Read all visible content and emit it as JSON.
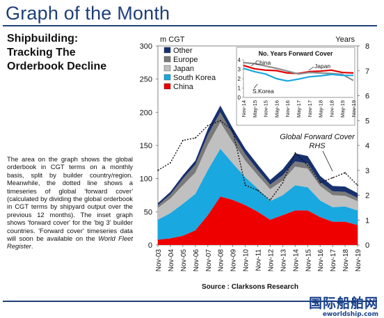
{
  "page": {
    "title": "Graph of the Month",
    "headline": [
      "Shipbuilding:",
      "Tracking The",
      "Orderbook Decline"
    ],
    "body_before": "The area on the graph shows the global orderbook in CGT terms on a monthly basis, split by builder country/region. Meanwhile, the dotted line shows a timeseries of global 'forward cover' (calculated by dividing the global orderbook in CGT terms by shipyard output over the previous 12 months). The inset graph shows 'forward cover' for the 'big 3' builder countries. 'Forward cover' timeseries data will soon be available on the ",
    "body_italic": "World Fleet Register",
    "body_after": ".",
    "source": "Source : Clarksons Research",
    "logo_cn": "国际船舶网",
    "logo_en": "eworldship.com"
  },
  "chart_data": [
    {
      "type": "area",
      "stacked": true,
      "title": "",
      "ylabel": "m CGT",
      "y2label": "Years",
      "ylim": [
        0,
        300
      ],
      "y2lim": [
        0,
        8
      ],
      "yticks": [
        0,
        50,
        100,
        150,
        200,
        250,
        300
      ],
      "y2ticks": [
        0,
        1,
        2,
        3,
        4,
        5,
        6,
        7,
        8
      ],
      "x": [
        "Nov-03",
        "Nov-04",
        "Nov-05",
        "Nov-06",
        "Nov-07",
        "Nov-08",
        "Nov-09",
        "Nov-10",
        "Nov-11",
        "Nov-12",
        "Nov-13",
        "Nov-14",
        "Nov-15",
        "Nov-16",
        "Nov-17",
        "Nov-18",
        "Nov-19"
      ],
      "legend_position": "top-left",
      "series": [
        {
          "name": "China",
          "color": "#ee0000",
          "values": [
            8,
            10,
            14,
            22,
            45,
            73,
            68,
            60,
            50,
            38,
            45,
            52,
            52,
            42,
            35,
            35,
            30
          ]
        },
        {
          "name": "South Korea",
          "color": "#1aa8e0",
          "values": [
            30,
            38,
            48,
            55,
            68,
            72,
            55,
            42,
            35,
            28,
            30,
            38,
            35,
            25,
            22,
            23,
            22
          ]
        },
        {
          "name": "Japan",
          "color": "#c0c0c0",
          "values": [
            18,
            22,
            28,
            32,
            38,
            40,
            32,
            25,
            20,
            18,
            22,
            28,
            28,
            22,
            18,
            16,
            14
          ]
        },
        {
          "name": "Europe",
          "color": "#7a7a7a",
          "values": [
            4,
            6,
            10,
            12,
            15,
            15,
            12,
            10,
            8,
            7,
            8,
            8,
            8,
            6,
            6,
            6,
            5
          ]
        },
        {
          "name": "Other",
          "color": "#17306e",
          "values": [
            3,
            4,
            5,
            6,
            9,
            10,
            9,
            8,
            8,
            7,
            9,
            12,
            11,
            9,
            8,
            8,
            7
          ]
        }
      ],
      "forward_cover": {
        "label": "Global Forward Cover, RHS",
        "axis": "right",
        "values": [
          3.0,
          3.3,
          4.2,
          4.3,
          4.8,
          5.0,
          4.6,
          2.4,
          2.2,
          1.8,
          2.5,
          3.7,
          3.2,
          2.5,
          2.7,
          2.9,
          2.4
        ]
      }
    },
    {
      "type": "line",
      "title": "No. Years Forward Cover",
      "ylim": [
        0,
        4
      ],
      "yticks": [
        0,
        1,
        2,
        3,
        4
      ],
      "x": [
        "Nov-14",
        "May-15",
        "Nov-15",
        "May-16",
        "Nov-16",
        "May-17",
        "Nov-17",
        "May-18",
        "Nov-18",
        "May-19",
        "Nov-19"
      ],
      "series": [
        {
          "name": "China",
          "color": "#e20000",
          "values": [
            3.4,
            3.05,
            2.9,
            2.85,
            2.6,
            2.55,
            2.75,
            2.8,
            2.9,
            2.65,
            2.6
          ]
        },
        {
          "name": "Japan",
          "color": "#8c8c8c",
          "values": [
            3.7,
            3.6,
            3.35,
            3.1,
            2.8,
            2.5,
            2.65,
            2.6,
            2.55,
            2.45,
            1.8
          ]
        },
        {
          "name": "S.Korea",
          "color": "#1aa8e0",
          "values": [
            3.1,
            2.75,
            2.5,
            2.0,
            1.75,
            1.95,
            2.2,
            2.3,
            2.45,
            2.35,
            2.35
          ]
        }
      ]
    }
  ]
}
